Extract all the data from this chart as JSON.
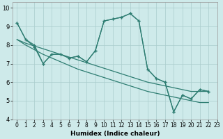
{
  "title": "",
  "xlabel": "Humidex (Indice chaleur)",
  "bg_color": "#ceeaea",
  "line_color": "#2e7d72",
  "grid_color": "#aacccc",
  "xlim": [
    -0.5,
    23
  ],
  "ylim": [
    4,
    10.3
  ],
  "xticks": [
    0,
    1,
    2,
    3,
    4,
    5,
    6,
    7,
    8,
    9,
    10,
    11,
    12,
    13,
    14,
    15,
    16,
    17,
    18,
    19,
    20,
    21,
    22,
    23
  ],
  "yticks": [
    4,
    5,
    6,
    7,
    8,
    9,
    10
  ],
  "s1_x": [
    0,
    1,
    2,
    3,
    4,
    5,
    6,
    7,
    8,
    9,
    10,
    11,
    12,
    13,
    14,
    15,
    16,
    17,
    18,
    19,
    20,
    21,
    22
  ],
  "s1_y": [
    9.2,
    8.3,
    8.0,
    7.0,
    7.5,
    7.5,
    7.3,
    7.4,
    7.1,
    7.7,
    9.3,
    9.4,
    9.5,
    9.7,
    9.3,
    6.7,
    6.2,
    6.0,
    4.4,
    5.3,
    5.1,
    5.6,
    5.5
  ],
  "s2_x": [
    0,
    1,
    2,
    3,
    4,
    5,
    6,
    7,
    8,
    9,
    10,
    11,
    12,
    13,
    14,
    15,
    16,
    17,
    18,
    19,
    20,
    21,
    22
  ],
  "s2_y": [
    8.3,
    8.1,
    7.95,
    7.8,
    7.65,
    7.5,
    7.35,
    7.2,
    7.05,
    6.9,
    6.75,
    6.6,
    6.45,
    6.3,
    6.15,
    6.0,
    5.9,
    5.8,
    5.7,
    5.6,
    5.5,
    5.5,
    5.5
  ],
  "s3_x": [
    0,
    1,
    2,
    3,
    4,
    5,
    6,
    7,
    8,
    9,
    10,
    11,
    12,
    13,
    14,
    15,
    16,
    17,
    18,
    19,
    20,
    21,
    22
  ],
  "s3_y": [
    8.3,
    8.0,
    7.75,
    7.5,
    7.3,
    7.1,
    6.9,
    6.7,
    6.55,
    6.4,
    6.25,
    6.1,
    5.95,
    5.8,
    5.65,
    5.5,
    5.4,
    5.3,
    5.2,
    5.1,
    5.0,
    4.9,
    4.9
  ],
  "s4_x": [
    0,
    1,
    2,
    3,
    4,
    5,
    6,
    7,
    8,
    9,
    10,
    11,
    12,
    13,
    14,
    15,
    16,
    17,
    18,
    19,
    20,
    21,
    22
  ],
  "s4_y": [
    9.2,
    8.3,
    7.9,
    7.0,
    7.5,
    7.5,
    7.3,
    7.4,
    7.1,
    7.7,
    9.3,
    9.4,
    9.5,
    9.7,
    9.3,
    6.7,
    6.2,
    6.0,
    4.4,
    5.3,
    5.1,
    5.6,
    5.5
  ],
  "xlabel_fontsize": 6.5,
  "tick_fontsize": 5.5,
  "lw": 0.9
}
